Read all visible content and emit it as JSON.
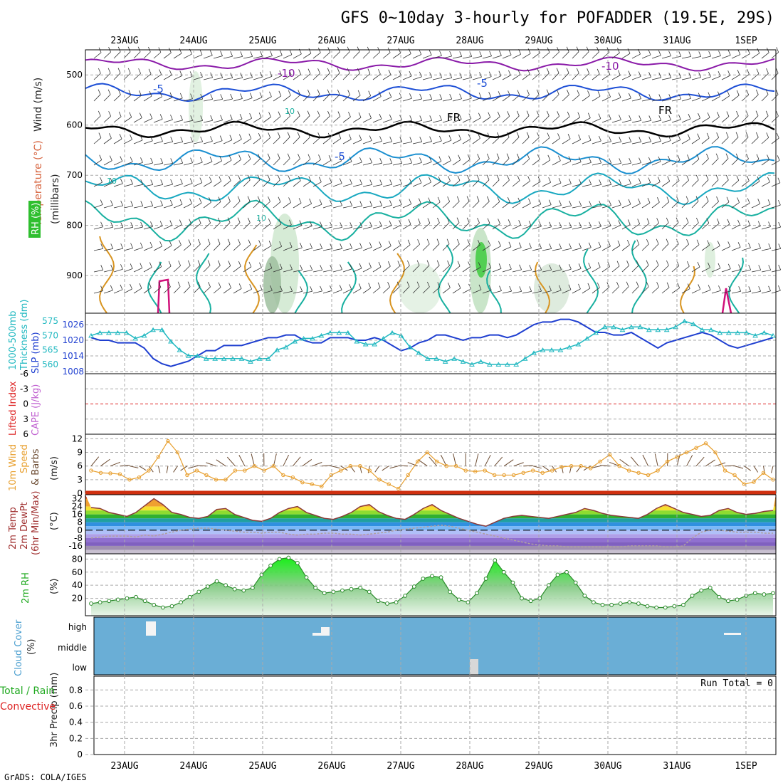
{
  "title": "GFS 0~10day 3-hourly for POFADDER (19.5E, 29S)",
  "footer": "GrADS: COLA/IGES",
  "colors": {
    "grid": "#aaaaaa",
    "slp": "#1f3fd0",
    "thickness": "#20b8c0",
    "wind_speed": "#e8a030",
    "barb": "#6b4a30",
    "temp_line": "#8b3a3a",
    "dewpt": "#b0a0a0",
    "rh2m": "#22bb22",
    "cloud": "#6aaed6",
    "lifted": "#dd2222",
    "contour_purple": "#8a1aa8",
    "contour_blue": "#1d4fd6",
    "contour_freeze": "#000000",
    "contour_teal": "#18b0a0",
    "contour_orange": "#d89420",
    "contour_magenta": "#d0107a"
  },
  "x_axis": {
    "dates": [
      "23AUG",
      "24AUG",
      "25AUG",
      "26AUG",
      "27AUG",
      "28AUG",
      "29AUG",
      "30AUG",
      "31AUG",
      "1SEP"
    ]
  },
  "panels": {
    "upper": {
      "labels": [
        "Wind (m/s)",
        "Temperature (°C)",
        "RH (%)",
        "(millibars)"
      ],
      "y_ticks": [
        "500",
        "600",
        "700",
        "800",
        "900"
      ],
      "contour_labels": [
        "-10",
        "-10",
        "-5",
        "-5",
        "FR",
        "FR",
        "-5",
        "10",
        "10",
        "10"
      ]
    },
    "slp": {
      "labels": [
        "1000-500mb",
        "Thickness (dm)",
        "SLP (mb)"
      ],
      "left_ticks": [
        "575",
        "570",
        "565",
        "560"
      ],
      "right_ticks": [
        "1026",
        "1020",
        "1014",
        "1008"
      ]
    },
    "cape": {
      "labels": [
        "Lifted Index",
        "CAPE (J/kg)"
      ],
      "left_ticks": [
        "-6",
        "-3",
        "0",
        "3",
        "6"
      ]
    },
    "wind10": {
      "labels": [
        "10m Wind",
        "Speed",
        "& Barbs",
        "(m/s)"
      ],
      "y_ticks": [
        "12",
        "9",
        "6",
        "3",
        "0"
      ]
    },
    "temp2m": {
      "labels": [
        "2m Temp",
        "2m DewPt",
        "(6hr Min/Max)",
        "(°C)"
      ],
      "y_ticks": [
        "32",
        "24",
        "16",
        "8",
        "0",
        "-8",
        "-16"
      ]
    },
    "rh2m": {
      "labels": [
        "2m RH",
        "(%)"
      ],
      "y_ticks": [
        "80",
        "60",
        "40",
        "20"
      ]
    },
    "cloud": {
      "labels": [
        "Cloud Cover",
        "(%)"
      ],
      "y_ticks": [
        "high",
        "middle",
        "low"
      ]
    },
    "precip": {
      "labels": [
        "3hr Precip (mm)",
        "Total / Rain",
        "Convective"
      ],
      "y_ticks": [
        "0.8",
        "0.6",
        "0.4",
        "0.2",
        "0"
      ],
      "run_total": "Run Total = 0"
    }
  },
  "chart_data": {
    "type": "line",
    "interval_hours": 3,
    "start": "22AUG 18Z",
    "series": [
      {
        "name": "SLP (mb)",
        "values": [
          1021,
          1020,
          1020,
          1019,
          1019,
          1019,
          1017,
          1013,
          1011,
          1010,
          1011,
          1012,
          1014,
          1016,
          1016,
          1018,
          1018,
          1018,
          1019,
          1020,
          1021,
          1021,
          1022,
          1022,
          1020,
          1019,
          1019,
          1021,
          1021,
          1021,
          1020,
          1020,
          1021,
          1020,
          1018,
          1016,
          1017,
          1019,
          1020,
          1022,
          1022,
          1021,
          1020,
          1021,
          1021,
          1022,
          1022,
          1021,
          1022,
          1024,
          1026,
          1027,
          1027,
          1028,
          1028,
          1027,
          1025,
          1023,
          1023,
          1022,
          1022,
          1023,
          1021,
          1019,
          1017,
          1019,
          1020,
          1021,
          1022,
          1023,
          1022,
          1020,
          1018,
          1017,
          1018,
          1019,
          1020,
          1021
        ]
      },
      {
        "name": "1000-500mb Thickness (dm)",
        "values": [
          570,
          571,
          571,
          571,
          571,
          569,
          570,
          572,
          572,
          568,
          565,
          563,
          563,
          562,
          562,
          562,
          562,
          562,
          561,
          562,
          562,
          565,
          566,
          568,
          569,
          569,
          570,
          571,
          571,
          571,
          568,
          567,
          567,
          569,
          571,
          570,
          566,
          564,
          562,
          562,
          561,
          562,
          561,
          560,
          561,
          560,
          560,
          560,
          560,
          562,
          564,
          565,
          565,
          565,
          566,
          567,
          569,
          571,
          573,
          573,
          572,
          573,
          573,
          572,
          572,
          572,
          573,
          575,
          574,
          572,
          572,
          571,
          571,
          571,
          571,
          570,
          571,
          570
        ]
      },
      {
        "name": "10m Wind Speed (m/s)",
        "values": [
          5,
          4.5,
          4.4,
          4.2,
          3,
          3.5,
          5,
          8,
          11.5,
          9,
          4,
          5,
          4,
          3,
          3,
          5,
          5,
          6,
          5,
          6,
          4,
          3.5,
          2.4,
          2,
          1.5,
          4,
          5,
          6,
          6,
          5,
          3,
          2,
          1,
          4,
          7,
          9,
          7,
          6,
          6,
          5,
          4.8,
          5,
          4,
          4,
          4,
          4.5,
          5,
          4.5,
          5,
          5.8,
          6,
          6,
          5.5,
          7,
          8.5,
          6,
          5,
          4.5,
          4,
          5,
          7,
          8,
          9,
          10,
          11,
          9,
          5,
          4,
          2,
          2.5,
          4.5,
          3
        ]
      },
      {
        "name": "2m Temp (°C)",
        "values": [
          23,
          22,
          18,
          16,
          14,
          18,
          25,
          32,
          26,
          18,
          16,
          13,
          12,
          14,
          21,
          22,
          16,
          13,
          10,
          9,
          12,
          18,
          22,
          24,
          18,
          15,
          12,
          11,
          14,
          18,
          24,
          26,
          19,
          15,
          12,
          11,
          16,
          22,
          26,
          20,
          16,
          12,
          9,
          6,
          4,
          8,
          12,
          14,
          15,
          14,
          13,
          12,
          14,
          16,
          18,
          22,
          20,
          17,
          15,
          14,
          13,
          12,
          16,
          22,
          26,
          22,
          18,
          16,
          14,
          15,
          20,
          22,
          18,
          16,
          17,
          19,
          20
        ]
      },
      {
        "name": "2m DewPt (°C)",
        "values": [
          -8,
          -7,
          -6,
          -6,
          -6,
          -7,
          -5,
          -6,
          -4,
          -2,
          0,
          1,
          2,
          2,
          1,
          0,
          -1,
          -2,
          -2,
          -3,
          -2,
          -2,
          -4,
          -5,
          -4,
          -4,
          -3,
          -3,
          -4,
          -4,
          -5,
          -4,
          -3,
          -2,
          0,
          1,
          2,
          3,
          4,
          5,
          4,
          2,
          0,
          -2,
          -4,
          -6,
          -8,
          -10,
          -12,
          -14,
          -15,
          -16,
          -16,
          -17,
          -17,
          -17,
          -17,
          -17,
          -17,
          -17,
          -16,
          -16,
          -16,
          -16,
          -17,
          -17,
          -16,
          -8,
          -2,
          0,
          0,
          -1,
          -2,
          -2,
          -2,
          -3,
          -3
        ]
      },
      {
        "name": "2m RH (%)",
        "values": [
          12,
          14,
          16,
          18,
          20,
          22,
          16,
          10,
          6,
          8,
          14,
          22,
          30,
          38,
          46,
          40,
          34,
          32,
          36,
          56,
          70,
          80,
          82,
          74,
          52,
          36,
          28,
          30,
          32,
          34,
          36,
          30,
          16,
          12,
          14,
          24,
          38,
          50,
          54,
          52,
          30,
          18,
          14,
          28,
          50,
          78,
          60,
          44,
          20,
          16,
          20,
          40,
          56,
          60,
          44,
          24,
          14,
          10,
          10,
          12,
          14,
          12,
          8,
          6,
          6,
          8,
          10,
          24,
          32,
          36,
          22,
          16,
          18,
          24,
          28,
          26,
          28
        ]
      }
    ]
  }
}
